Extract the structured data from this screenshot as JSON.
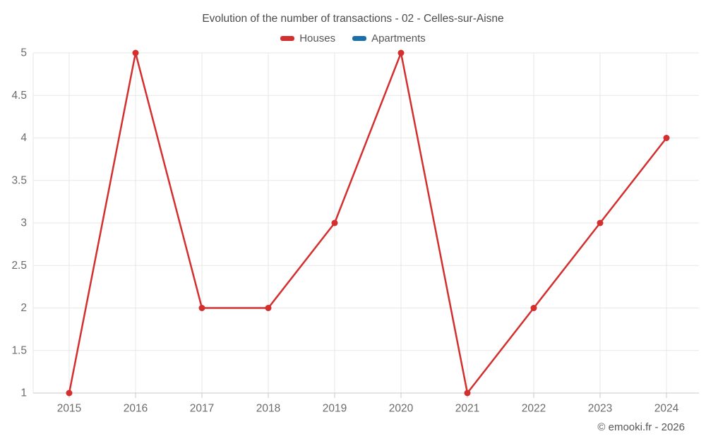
{
  "title": "Evolution of the number of transactions - 02 - Celles-sur-Aisne",
  "footer": "© emooki.fr - 2026",
  "legend": {
    "items": [
      {
        "label": "Houses",
        "color": "#d32f2f"
      },
      {
        "label": "Apartments",
        "color": "#1a6fa8"
      }
    ]
  },
  "chart_data": {
    "type": "line",
    "title": "Evolution of the number of transactions - 02 - Celles-sur-Aisne",
    "categories": [
      "2015",
      "2016",
      "2017",
      "2018",
      "2019",
      "2020",
      "2021",
      "2022",
      "2023",
      "2024"
    ],
    "series": [
      {
        "name": "Houses",
        "color": "#d32f2f",
        "values": [
          1,
          5,
          2,
          2,
          3,
          5,
          1,
          2,
          3,
          4
        ]
      },
      {
        "name": "Apartments",
        "color": "#1a6fa8",
        "values": []
      }
    ],
    "xlabel": "",
    "ylabel": "",
    "ylim": [
      1,
      5
    ],
    "yticks": [
      1,
      1.5,
      2,
      2.5,
      3,
      3.5,
      4,
      4.5,
      5
    ],
    "grid": true,
    "legend_position": "top",
    "colors": {
      "grid": "#e7e7e7",
      "axis": "#c9c9c9",
      "tick_label": "#6b6b6b"
    }
  }
}
